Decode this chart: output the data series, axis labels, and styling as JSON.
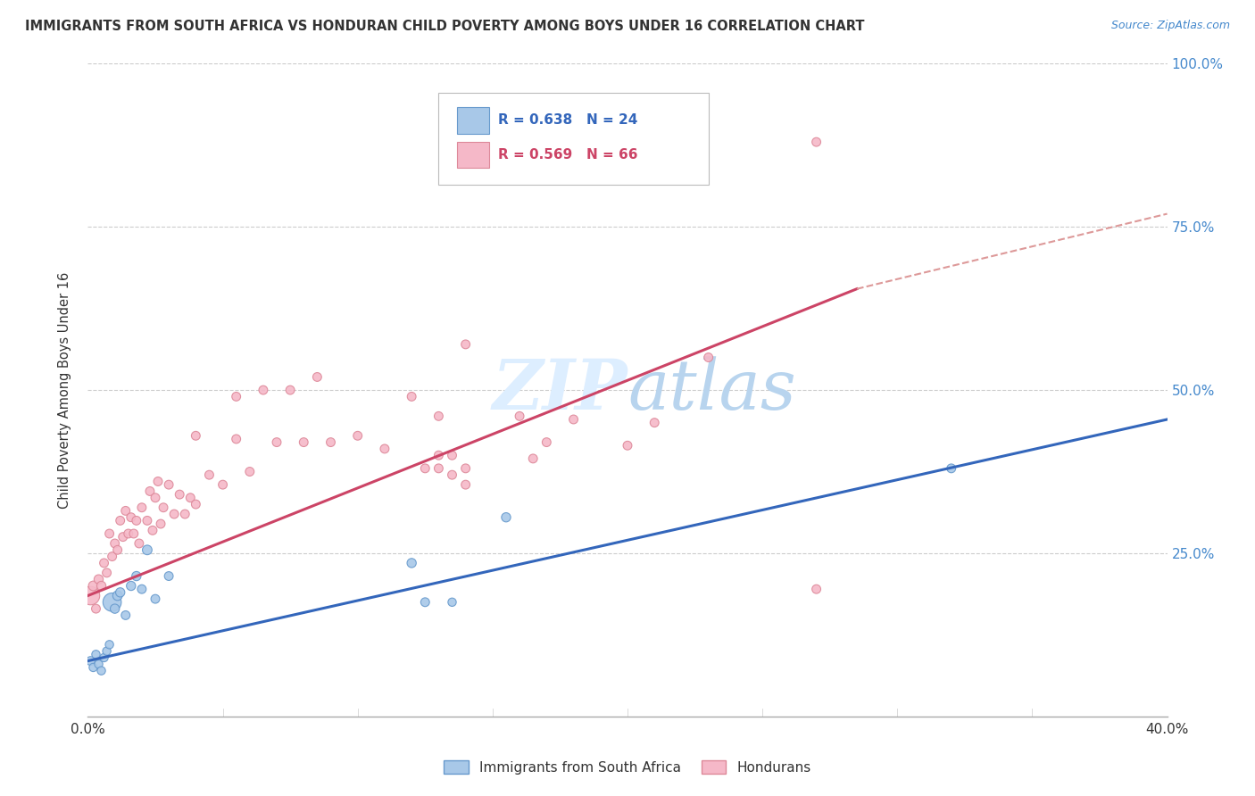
{
  "title": "IMMIGRANTS FROM SOUTH AFRICA VS HONDURAN CHILD POVERTY AMONG BOYS UNDER 16 CORRELATION CHART",
  "source": "Source: ZipAtlas.com",
  "ylabel": "Child Poverty Among Boys Under 16",
  "xlim": [
    0.0,
    0.4
  ],
  "ylim": [
    0.0,
    1.0
  ],
  "xtick_positions": [
    0.0,
    0.05,
    0.1,
    0.15,
    0.2,
    0.25,
    0.3,
    0.35,
    0.4
  ],
  "xtick_labels": [
    "0.0%",
    "",
    "",
    "",
    "",
    "",
    "",
    "",
    "40.0%"
  ],
  "ytick_positions": [
    0.0,
    0.25,
    0.5,
    0.75,
    1.0
  ],
  "ytick_labels_right": [
    "",
    "25.0%",
    "50.0%",
    "75.0%",
    "100.0%"
  ],
  "blue_R": "0.638",
  "blue_N": "24",
  "pink_R": "0.569",
  "pink_N": "66",
  "blue_fill_color": "#a8c8e8",
  "pink_fill_color": "#f5b8c8",
  "blue_edge_color": "#6699cc",
  "pink_edge_color": "#dd8899",
  "blue_line_color": "#3366bb",
  "pink_line_color": "#cc4466",
  "dashed_line_color": "#dd9999",
  "watermark_color": "#ddeeff",
  "background_color": "#ffffff",
  "grid_color": "#cccccc",
  "title_color": "#333333",
  "source_color": "#4488cc",
  "axis_label_color": "#333333",
  "tick_label_color": "#4488cc",
  "blue_scatter_x": [
    0.001,
    0.002,
    0.003,
    0.004,
    0.005,
    0.006,
    0.007,
    0.008,
    0.009,
    0.01,
    0.011,
    0.012,
    0.014,
    0.016,
    0.018,
    0.02,
    0.022,
    0.025,
    0.03,
    0.12,
    0.125,
    0.135,
    0.155,
    0.32
  ],
  "blue_scatter_y": [
    0.085,
    0.075,
    0.095,
    0.08,
    0.07,
    0.09,
    0.1,
    0.11,
    0.175,
    0.165,
    0.185,
    0.19,
    0.155,
    0.2,
    0.215,
    0.195,
    0.255,
    0.18,
    0.215,
    0.235,
    0.175,
    0.175,
    0.305,
    0.38
  ],
  "blue_scatter_size": [
    50,
    45,
    45,
    45,
    45,
    45,
    45,
    45,
    220,
    55,
    60,
    55,
    50,
    55,
    55,
    50,
    60,
    50,
    50,
    55,
    50,
    45,
    55,
    50
  ],
  "pink_scatter_x": [
    0.001,
    0.002,
    0.003,
    0.004,
    0.005,
    0.006,
    0.007,
    0.008,
    0.009,
    0.01,
    0.011,
    0.012,
    0.013,
    0.014,
    0.015,
    0.016,
    0.017,
    0.018,
    0.019,
    0.02,
    0.022,
    0.023,
    0.024,
    0.025,
    0.026,
    0.027,
    0.028,
    0.03,
    0.032,
    0.034,
    0.036,
    0.038,
    0.04,
    0.045,
    0.05,
    0.055,
    0.06,
    0.07,
    0.08,
    0.09,
    0.1,
    0.11,
    0.12,
    0.13,
    0.14,
    0.16,
    0.18,
    0.2,
    0.21,
    0.23,
    0.165,
    0.13,
    0.135,
    0.125,
    0.135,
    0.13,
    0.14,
    0.27,
    0.17,
    0.04,
    0.055,
    0.065,
    0.075,
    0.085,
    0.14,
    0.27
  ],
  "pink_scatter_y": [
    0.185,
    0.2,
    0.165,
    0.21,
    0.2,
    0.235,
    0.22,
    0.28,
    0.245,
    0.265,
    0.255,
    0.3,
    0.275,
    0.315,
    0.28,
    0.305,
    0.28,
    0.3,
    0.265,
    0.32,
    0.3,
    0.345,
    0.285,
    0.335,
    0.36,
    0.295,
    0.32,
    0.355,
    0.31,
    0.34,
    0.31,
    0.335,
    0.325,
    0.37,
    0.355,
    0.425,
    0.375,
    0.42,
    0.42,
    0.42,
    0.43,
    0.41,
    0.49,
    0.46,
    0.355,
    0.46,
    0.455,
    0.415,
    0.45,
    0.55,
    0.395,
    0.38,
    0.37,
    0.38,
    0.4,
    0.4,
    0.38,
    0.195,
    0.42,
    0.43,
    0.49,
    0.5,
    0.5,
    0.52,
    0.57,
    0.88
  ],
  "pink_scatter_size": [
    220,
    60,
    50,
    55,
    55,
    50,
    50,
    50,
    50,
    50,
    50,
    50,
    50,
    50,
    50,
    50,
    50,
    50,
    50,
    50,
    50,
    50,
    50,
    50,
    50,
    50,
    50,
    50,
    50,
    50,
    50,
    50,
    50,
    50,
    50,
    50,
    50,
    50,
    50,
    50,
    50,
    50,
    50,
    50,
    50,
    50,
    50,
    50,
    50,
    50,
    50,
    50,
    50,
    50,
    50,
    50,
    50,
    50,
    50,
    50,
    50,
    50,
    50,
    50,
    50,
    50
  ],
  "blue_line": {
    "x0": 0.0,
    "y0": 0.085,
    "x1": 0.4,
    "y1": 0.455
  },
  "pink_solid_line": {
    "x0": 0.0,
    "y0": 0.185,
    "x1": 0.285,
    "y1": 0.655
  },
  "pink_dashed_line": {
    "x0": 0.285,
    "y0": 0.655,
    "x1": 0.4,
    "y1": 0.77
  },
  "legend_blue_label": "Immigrants from South Africa",
  "legend_pink_label": "Hondurans"
}
